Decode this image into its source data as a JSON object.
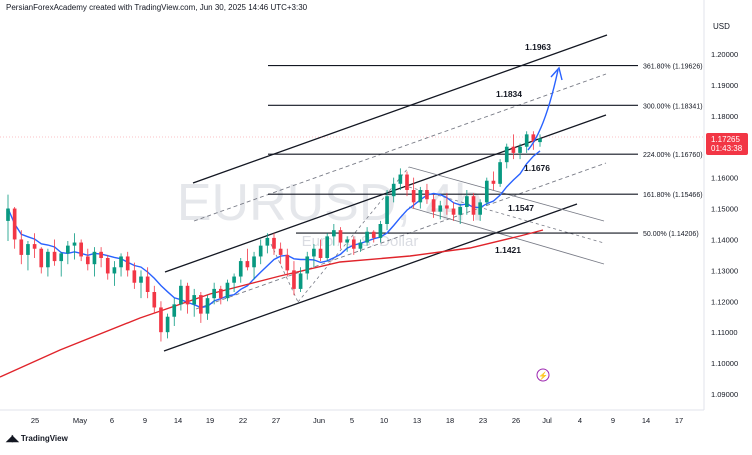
{
  "header": {
    "attribution": "PersianForexAcademy created with TradingView.com, Jun 30, 2025 14:46 UTC+3:30"
  },
  "footer": {
    "brand": "TradingView",
    "brand_icon": "tradingview-logo-icon"
  },
  "watermark": {
    "symbol": "EURUSD, 4h",
    "description": "Euro / U.S. Dollar"
  },
  "price_axis": {
    "currency": "USD"
  },
  "current_price": {
    "value": "1.17265",
    "countdown": "01:43:38",
    "color": "#f23645"
  },
  "colors": {
    "candle_up": "#089981",
    "candle_down": "#f23645",
    "ma_fast": "#2962ff",
    "ma_slow": "#e0242b",
    "projection": "#2962ff"
  },
  "chart_data": {
    "type": "candlestick",
    "y_axis": {
      "ylim": [
        1.09,
        1.21
      ],
      "ticks": [
        "1.20000",
        "1.19000",
        "1.18000",
        "1.17000",
        "1.16000",
        "1.15000",
        "1.14000",
        "1.13000",
        "1.12000",
        "1.11000",
        "1.10000",
        "1.09000"
      ]
    },
    "x_axis": {
      "ticks": [
        "25",
        "May",
        "6",
        "9",
        "14",
        "19",
        "22",
        "27",
        "Jun",
        "5",
        "10",
        "13",
        "18",
        "23",
        "26",
        "Jul",
        "4",
        "9",
        "14",
        "17"
      ]
    },
    "fibonacci_levels": [
      {
        "ratio": "361.80%",
        "price": "1.19626",
        "label": "361.80% (1.19626)"
      },
      {
        "ratio": "300.00%",
        "price": "1.18341",
        "label": "300.00% (1.18341)"
      },
      {
        "ratio": "224.00%",
        "price": "1.16760",
        "label": "224.00% (1.16760)"
      },
      {
        "ratio": "161.80%",
        "price": "1.15466",
        "label": "161.80% (1.15466)"
      },
      {
        "ratio": "50.00%",
        "price": "1.14206",
        "label": "50.00% (1.14206)"
      }
    ],
    "price_annotations": [
      "1.1963",
      "1.1834",
      "1.1676",
      "1.1547",
      "1.1421"
    ],
    "candles": [
      [
        1.146,
        1.1545,
        1.1395,
        1.15
      ],
      [
        1.15,
        1.1505,
        1.137,
        1.14
      ],
      [
        1.14,
        1.143,
        1.132,
        1.135
      ],
      [
        1.135,
        1.1395,
        1.13,
        1.1385
      ],
      [
        1.1385,
        1.142,
        1.134,
        1.137
      ],
      [
        1.137,
        1.1375,
        1.129,
        1.131
      ],
      [
        1.131,
        1.137,
        1.128,
        1.136
      ],
      [
        1.136,
        1.14,
        1.1315,
        1.133
      ],
      [
        1.133,
        1.136,
        1.128,
        1.1355
      ],
      [
        1.1355,
        1.1395,
        1.132,
        1.138
      ],
      [
        1.138,
        1.142,
        1.1335,
        1.139
      ],
      [
        1.139,
        1.14,
        1.133,
        1.1345
      ],
      [
        1.1345,
        1.137,
        1.13,
        1.132
      ],
      [
        1.132,
        1.1375,
        1.128,
        1.136
      ],
      [
        1.136,
        1.1375,
        1.131,
        1.134
      ],
      [
        1.134,
        1.135,
        1.127,
        1.129
      ],
      [
        1.129,
        1.133,
        1.125,
        1.131
      ],
      [
        1.131,
        1.1355,
        1.128,
        1.1345
      ],
      [
        1.1345,
        1.136,
        1.128,
        1.13
      ],
      [
        1.13,
        1.1325,
        1.124,
        1.126
      ],
      [
        1.126,
        1.13,
        1.121,
        1.128
      ],
      [
        1.128,
        1.131,
        1.121,
        1.123
      ],
      [
        1.123,
        1.125,
        1.116,
        1.118
      ],
      [
        1.118,
        1.12,
        1.107,
        1.11
      ],
      [
        1.11,
        1.116,
        1.108,
        1.115
      ],
      [
        1.115,
        1.121,
        1.112,
        1.119
      ],
      [
        1.119,
        1.127,
        1.117,
        1.125
      ],
      [
        1.125,
        1.126,
        1.116,
        1.119
      ],
      [
        1.119,
        1.124,
        1.115,
        1.122
      ],
      [
        1.122,
        1.123,
        1.113,
        1.116
      ],
      [
        1.116,
        1.122,
        1.114,
        1.121
      ],
      [
        1.121,
        1.126,
        1.119,
        1.124
      ],
      [
        1.124,
        1.125,
        1.119,
        1.121
      ],
      [
        1.121,
        1.127,
        1.12,
        1.126
      ],
      [
        1.126,
        1.129,
        1.123,
        1.128
      ],
      [
        1.128,
        1.134,
        1.126,
        1.133
      ],
      [
        1.133,
        1.137,
        1.13,
        1.131
      ],
      [
        1.131,
        1.136,
        1.127,
        1.1345
      ],
      [
        1.1345,
        1.14,
        1.132,
        1.138
      ],
      [
        1.138,
        1.142,
        1.1355,
        1.1405
      ],
      [
        1.1405,
        1.142,
        1.135,
        1.137
      ],
      [
        1.137,
        1.139,
        1.132,
        1.135
      ],
      [
        1.135,
        1.137,
        1.128,
        1.13
      ],
      [
        1.13,
        1.133,
        1.122,
        1.124
      ],
      [
        1.124,
        1.131,
        1.123,
        1.129
      ],
      [
        1.129,
        1.136,
        1.127,
        1.1345
      ],
      [
        1.1345,
        1.1385,
        1.131,
        1.137
      ],
      [
        1.137,
        1.14,
        1.133,
        1.134
      ],
      [
        1.134,
        1.142,
        1.133,
        1.141
      ],
      [
        1.141,
        1.145,
        1.138,
        1.143
      ],
      [
        1.143,
        1.144,
        1.137,
        1.139
      ],
      [
        1.139,
        1.141,
        1.136,
        1.14
      ],
      [
        1.14,
        1.141,
        1.135,
        1.137
      ],
      [
        1.137,
        1.14,
        1.136,
        1.139
      ],
      [
        1.139,
        1.144,
        1.138,
        1.1425
      ],
      [
        1.1425,
        1.143,
        1.139,
        1.1405
      ],
      [
        1.1405,
        1.146,
        1.139,
        1.145
      ],
      [
        1.145,
        1.156,
        1.143,
        1.154
      ],
      [
        1.154,
        1.16,
        1.152,
        1.158
      ],
      [
        1.158,
        1.163,
        1.156,
        1.161
      ],
      [
        1.161,
        1.162,
        1.154,
        1.156
      ],
      [
        1.156,
        1.16,
        1.15,
        1.152
      ],
      [
        1.152,
        1.157,
        1.15,
        1.156
      ],
      [
        1.156,
        1.158,
        1.1515,
        1.153
      ],
      [
        1.153,
        1.1545,
        1.147,
        1.149
      ],
      [
        1.149,
        1.1525,
        1.1465,
        1.151
      ],
      [
        1.151,
        1.155,
        1.148,
        1.15
      ],
      [
        1.15,
        1.152,
        1.146,
        1.148
      ],
      [
        1.148,
        1.1515,
        1.145,
        1.1505
      ],
      [
        1.1505,
        1.156,
        1.148,
        1.154
      ],
      [
        1.154,
        1.155,
        1.146,
        1.148
      ],
      [
        1.148,
        1.153,
        1.146,
        1.152
      ],
      [
        1.152,
        1.16,
        1.151,
        1.159
      ],
      [
        1.159,
        1.162,
        1.156,
        1.158
      ],
      [
        1.158,
        1.166,
        1.157,
        1.165
      ],
      [
        1.165,
        1.171,
        1.163,
        1.17
      ],
      [
        1.17,
        1.174,
        1.166,
        1.168
      ],
      [
        1.168,
        1.171,
        1.166,
        1.17
      ],
      [
        1.17,
        1.175,
        1.168,
        1.174
      ],
      [
        1.174,
        1.175,
        1.169,
        1.1715
      ],
      [
        1.1715,
        1.174,
        1.17,
        1.17265
      ]
    ]
  }
}
